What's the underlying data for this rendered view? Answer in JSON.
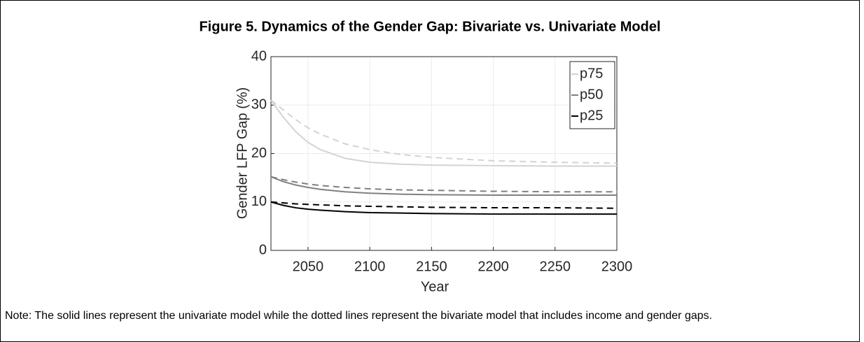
{
  "chart_data": {
    "type": "line",
    "title": "Figure 5. Dynamics of the Gender Gap: Bivariate vs. Univariate Model",
    "x_label": "Year",
    "y_label": "Gender LFP Gap (%)",
    "x": [
      2020,
      2030,
      2040,
      2050,
      2060,
      2080,
      2100,
      2125,
      2150,
      2200,
      2250,
      2300
    ],
    "series": [
      {
        "name": "p75",
        "color": "#d3d3d3",
        "values": [
          31,
          27.5,
          24.5,
          22.3,
          20.8,
          19,
          18.2,
          17.8,
          17.6,
          17.5,
          17.4,
          17.4
        ]
      },
      {
        "name": "p50",
        "color": "#808080",
        "values": [
          15.2,
          14.2,
          13.5,
          13,
          12.6,
          12.1,
          11.8,
          11.6,
          11.5,
          11.4,
          11.4,
          11.4
        ]
      },
      {
        "name": "p25",
        "color": "#000000",
        "values": [
          10,
          9.3,
          8.8,
          8.5,
          8.3,
          8,
          7.8,
          7.7,
          7.6,
          7.5,
          7.5,
          7.5
        ]
      },
      {
        "color": "#d3d3d3",
        "dashed": true,
        "values": [
          31,
          29,
          27,
          25.3,
          24,
          22,
          20.8,
          19.8,
          19.2,
          18.5,
          18.2,
          18
        ]
      },
      {
        "color": "#808080",
        "dashed": true,
        "values": [
          15.2,
          14.6,
          14.1,
          13.7,
          13.4,
          13,
          12.7,
          12.5,
          12.4,
          12.2,
          12.1,
          12.1
        ]
      },
      {
        "color": "#000000",
        "dashed": true,
        "values": [
          10,
          9.8,
          9.6,
          9.5,
          9.4,
          9.2,
          9.1,
          9,
          8.9,
          8.8,
          8.8,
          8.7
        ]
      }
    ],
    "xlim": [
      2020,
      2300
    ],
    "xticks": [
      2050,
      2100,
      2150,
      2200,
      2250,
      2300
    ],
    "ylim": [
      0,
      40
    ],
    "yticks": [
      0,
      10,
      20,
      30,
      40
    ],
    "grid": true,
    "legend": "top-right",
    "note": "Note: The solid lines represent the univariate model while the dotted lines represent the bivariate model that includes income and gender gaps."
  }
}
